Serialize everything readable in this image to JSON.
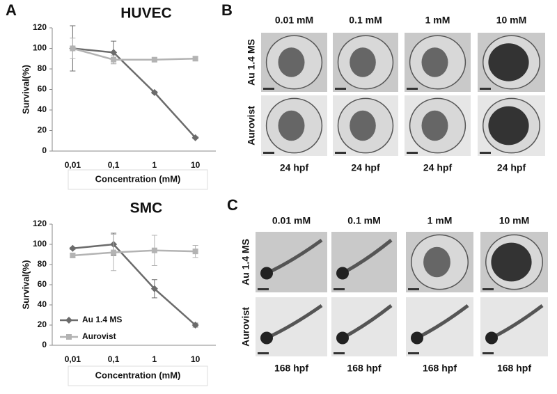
{
  "panel_labels": [
    "A",
    "B",
    "C"
  ],
  "chart_data": [
    {
      "type": "line",
      "title": "HUVEC",
      "x_label": "Concentration (mM)",
      "y_label": "Survival(%)",
      "categories": [
        "0,01",
        "0,1",
        "1",
        "10"
      ],
      "ylim": [
        0,
        120
      ],
      "yticks": [
        0,
        20,
        40,
        60,
        80,
        100,
        120
      ],
      "series": [
        {
          "color": "#6b6b6b",
          "marker": "diamond",
          "values": [
            100,
            96,
            57,
            13
          ],
          "errors": [
            22,
            11,
            1,
            1
          ]
        },
        {
          "color": "#b3b3b3",
          "marker": "square",
          "values": [
            100,
            89,
            89,
            90
          ],
          "errors": [
            10,
            4,
            2,
            2
          ]
        }
      ]
    },
    {
      "type": "line",
      "title": "SMC",
      "x_label": "Concentration (mM)",
      "y_label": "Survival(%)",
      "categories": [
        "0,01",
        "0,1",
        "1",
        "10"
      ],
      "ylim": [
        0,
        120
      ],
      "yticks": [
        0,
        20,
        40,
        60,
        80,
        100,
        120
      ],
      "legend": "lower left",
      "series": [
        {
          "name": "Au 1.4 MS",
          "color": "#6b6b6b",
          "marker": "diamond",
          "values": [
            96,
            100,
            56,
            20
          ],
          "errors": [
            1,
            11,
            9,
            2
          ]
        },
        {
          "name": "Aurovist",
          "color": "#b3b3b3",
          "marker": "square",
          "values": [
            89,
            92,
            94,
            93
          ],
          "errors": [
            2,
            18,
            15,
            6
          ]
        }
      ]
    }
  ],
  "image_panels": [
    {
      "columns": [
        "0.01 mM",
        "0.1 mM",
        "1 mM",
        "10 mM"
      ],
      "rows": [
        "Au 1.4 MS",
        "Aurovist"
      ],
      "captions": [
        "24 hpf",
        "24 hpf",
        "24 hpf",
        "24 hpf"
      ]
    },
    {
      "columns": [
        "0.01 mM",
        "0.1 mM",
        "1 mM",
        "10 mM"
      ],
      "rows": [
        "Au 1.4 MS",
        "Aurovist"
      ],
      "captions": [
        "168 hpf",
        "168 hpf",
        "168 hpf",
        "168 hpf"
      ]
    }
  ]
}
